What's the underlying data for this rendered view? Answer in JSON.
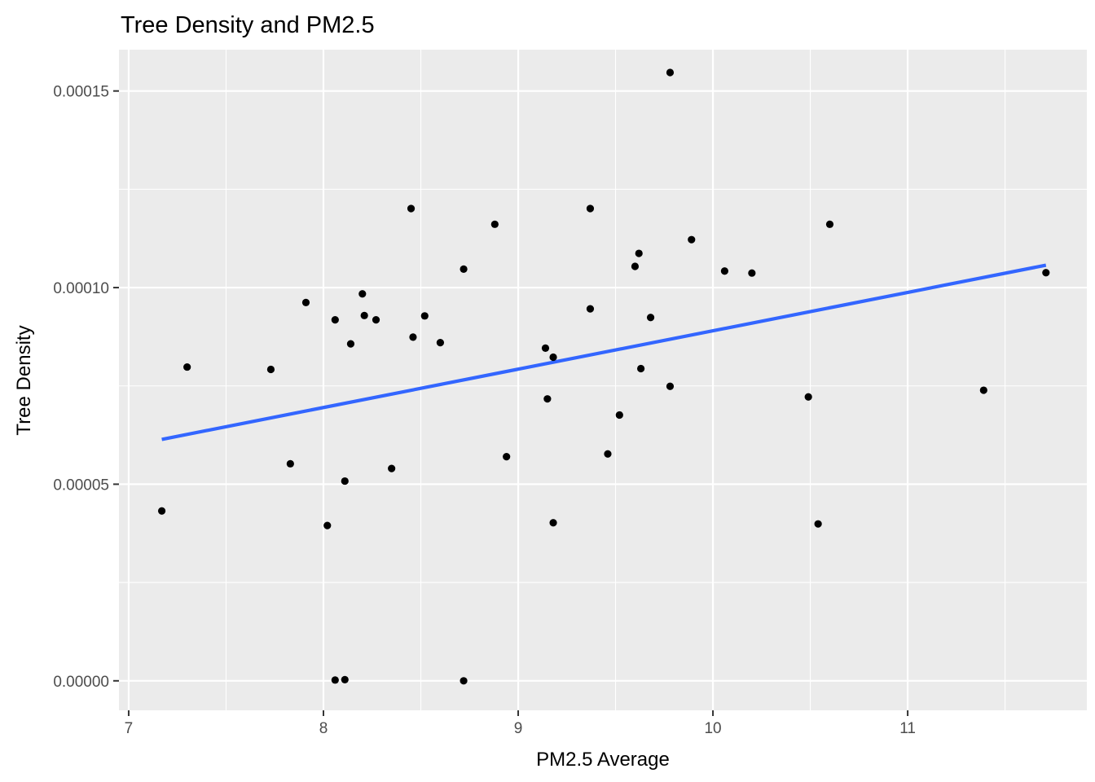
{
  "chart_data": {
    "type": "scatter",
    "title": "Tree Density and PM2.5",
    "xlabel": "PM2.5 Average",
    "ylabel": "Tree Density",
    "xlim": [
      6.95,
      11.92
    ],
    "ylim": [
      -7.5e-06,
      0.0001605
    ],
    "x_ticks": [
      7,
      8,
      9,
      10,
      11
    ],
    "x_tick_labels": [
      "7",
      "8",
      "9",
      "10",
      "11"
    ],
    "x_minor_ticks": [
      7.5,
      8.5,
      9.5,
      10.5,
      11.5
    ],
    "y_ticks": [
      0,
      5e-05,
      0.0001,
      0.00015
    ],
    "y_tick_labels": [
      "0.00000",
      "0.00005",
      "0.00010",
      "0.00015"
    ],
    "y_minor_ticks": [
      2.5e-05,
      7.5e-05,
      0.000125
    ],
    "grid": true,
    "panel_color": "#ebebeb",
    "point_color": "#000000",
    "series": [
      {
        "type": "scatter",
        "x": [
          7.17,
          7.3,
          7.73,
          7.83,
          7.91,
          8.02,
          8.06,
          8.06,
          8.11,
          8.11,
          8.14,
          8.2,
          8.21,
          8.27,
          8.35,
          8.45,
          8.46,
          8.52,
          8.6,
          8.72,
          8.72,
          8.88,
          8.94,
          9.14,
          9.15,
          9.18,
          9.18,
          9.37,
          9.37,
          9.46,
          9.52,
          9.6,
          9.62,
          9.63,
          9.68,
          9.78,
          9.78,
          9.89,
          10.06,
          10.2,
          10.49,
          10.54,
          10.6,
          11.39,
          11.71
        ],
        "y": [
          4.32e-05,
          7.98e-05,
          7.92e-05,
          5.52e-05,
          9.62e-05,
          3.95e-05,
          9.18e-05,
          2e-07,
          5.08e-05,
          3e-07,
          8.57e-05,
          9.84e-05,
          9.29e-05,
          9.18e-05,
          5.4e-05,
          0.0001201,
          8.74e-05,
          9.28e-05,
          8.6e-05,
          0.0001047,
          0,
          0.0001161,
          5.7e-05,
          8.46e-05,
          7.17e-05,
          8.23e-05,
          4.02e-05,
          9.46e-05,
          0.0001201,
          5.77e-05,
          6.76e-05,
          0.0001054,
          0.0001087,
          7.94e-05,
          9.24e-05,
          7.49e-05,
          0.0001547,
          0.0001122,
          0.0001042,
          0.0001037,
          7.22e-05,
          3.99e-05,
          0.0001161,
          7.39e-05,
          0.0001038
        ]
      },
      {
        "type": "line",
        "color": "#3366ff",
        "x": [
          7.17,
          11.71
        ],
        "y": [
          6.14e-05,
          0.0001057
        ]
      }
    ]
  }
}
